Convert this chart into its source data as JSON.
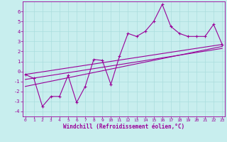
{
  "xlabel": "Windchill (Refroidissement éolien,°C)",
  "bg_color": "#c8eeee",
  "line_color": "#990099",
  "grid_color": "#aadddd",
  "xlim": [
    -0.3,
    23.3
  ],
  "ylim": [
    -4.5,
    7.0
  ],
  "xticks": [
    0,
    1,
    2,
    3,
    4,
    5,
    6,
    7,
    8,
    9,
    10,
    11,
    12,
    13,
    14,
    15,
    16,
    17,
    18,
    19,
    20,
    21,
    22,
    23
  ],
  "yticks": [
    -4,
    -3,
    -2,
    -1,
    0,
    1,
    2,
    3,
    4,
    5,
    6
  ],
  "data_x": [
    0,
    1,
    2,
    3,
    4,
    5,
    6,
    7,
    8,
    9,
    10,
    11,
    12,
    13,
    14,
    15,
    16,
    17,
    18,
    19,
    20,
    21,
    22,
    23
  ],
  "data_y": [
    -0.3,
    -0.7,
    -3.5,
    -2.5,
    -2.5,
    -0.4,
    -3.1,
    -1.5,
    1.2,
    1.1,
    -1.3,
    1.5,
    3.8,
    3.5,
    4.0,
    5.0,
    6.7,
    4.5,
    3.8,
    3.5,
    3.5,
    3.5,
    4.7,
    2.7
  ],
  "trend1_x": [
    0,
    23
  ],
  "trend1_y": [
    -0.3,
    2.7
  ],
  "trend2_x": [
    0,
    23
  ],
  "trend2_y": [
    -0.8,
    2.3
  ],
  "trend3_x": [
    0,
    23
  ],
  "trend3_y": [
    -1.5,
    2.5
  ]
}
